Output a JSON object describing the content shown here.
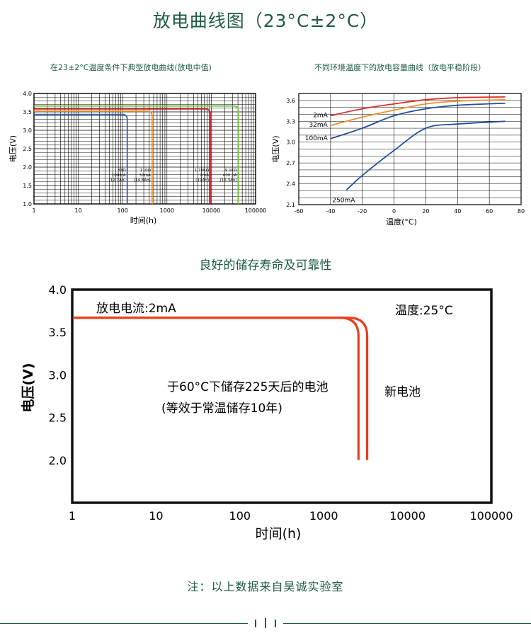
{
  "page": {
    "title": "放电曲线图（23°C±2°C）",
    "note": "注：以上数据来自昊诚实验室",
    "section_title": "良好的储存寿命及可靠性"
  },
  "chart_data": [
    {
      "id": "chart1",
      "type": "line",
      "title": "在23±2°C温度条件下典型放电曲线(放电中值)",
      "xlabel": "时间(h)",
      "ylabel": "电压(V)",
      "xscale": "log",
      "xlim": [
        1,
        100000
      ],
      "ylim": [
        1.0,
        4.0
      ],
      "xticks": [
        "1",
        "10",
        "100",
        "1000",
        "10000",
        "100000"
      ],
      "yticks": [
        "1.0",
        "1.5",
        "2.0",
        "2.5",
        "3.0",
        "3.5",
        "4.0"
      ],
      "grid": true,
      "series": [
        {
          "color": "#2b5fb0",
          "plateau": 3.43,
          "end_x": 127,
          "label_lines": [
            "33Ω",
            "100mA",
            "(12.7Ah)"
          ]
        },
        {
          "color": "#e8902a",
          "plateau": 3.52,
          "end_x": 463,
          "label_lines": [
            "110Ω",
            "32mA",
            "(14.8Ah)"
          ]
        },
        {
          "color": "#c8202a",
          "plateau": 3.58,
          "end_x": 9500,
          "label_lines": [
            "1.78KΩ",
            "2mA",
            "(19Ah)"
          ]
        },
        {
          "color": "#7ac142",
          "plateau": 3.66,
          "end_x": 40750,
          "label_lines": [
            "9.1KΩ",
            "400 μA",
            "(16.3Ah)"
          ]
        }
      ]
    },
    {
      "id": "chart2",
      "type": "line",
      "title": "不同环境温度下的放电容量曲线（放电平稳阶段）",
      "xlabel": "温度(°C)",
      "ylabel": "电压(V)",
      "xlim": [
        -60,
        80
      ],
      "ylim": [
        2.1,
        3.7
      ],
      "xticks": [
        "-60",
        "-40",
        "-20",
        "0",
        "20",
        "40",
        "60",
        "80"
      ],
      "yticks": [
        "2.1",
        "2.4",
        "2.7",
        "3.0",
        "3.3",
        "3.6"
      ],
      "grid": true,
      "series": [
        {
          "name": "2mA",
          "color": "#d9302a",
          "points": [
            [
              -40,
              3.38
            ],
            [
              -20,
              3.48
            ],
            [
              0,
              3.55
            ],
            [
              20,
              3.61
            ],
            [
              40,
              3.64
            ],
            [
              70,
              3.65
            ]
          ]
        },
        {
          "name": "32mA",
          "color": "#e8902a",
          "points": [
            [
              -40,
              3.24
            ],
            [
              -20,
              3.36
            ],
            [
              0,
              3.46
            ],
            [
              20,
              3.55
            ],
            [
              40,
              3.59
            ],
            [
              70,
              3.61
            ]
          ]
        },
        {
          "name": "100mA",
          "color": "#1f4e9c",
          "points": [
            [
              -40,
              3.05
            ],
            [
              -20,
              3.2
            ],
            [
              0,
              3.38
            ],
            [
              20,
              3.48
            ],
            [
              40,
              3.53
            ],
            [
              70,
              3.56
            ]
          ]
        },
        {
          "name": "250mA",
          "color": "#1f4e9c",
          "points": [
            [
              -30,
              2.31
            ],
            [
              -20,
              2.52
            ],
            [
              0,
              2.88
            ],
            [
              20,
              3.2
            ],
            [
              40,
              3.26
            ],
            [
              70,
              3.3
            ]
          ]
        }
      ]
    },
    {
      "id": "chart3",
      "type": "line",
      "xlabel": "时间(h)",
      "ylabel": "电压(V)",
      "xscale": "log",
      "xlim": [
        1,
        100000
      ],
      "ylim": [
        1.5,
        4.0
      ],
      "xticks": [
        "1",
        "10",
        "100",
        "1000",
        "10000",
        "100000"
      ],
      "yticks": [
        "2.0",
        "2.5",
        "3.0",
        "3.5",
        "4.0"
      ],
      "grid": false,
      "annotations": {
        "current": "放电电流:2mA",
        "temperature": "温度:25°C",
        "stored": "于60°C下储存225天后的电池",
        "stored_note": "(等效于常温储存10年)",
        "new": "新电池"
      },
      "series": [
        {
          "name": "于60°C下储存225天后的电池",
          "color": "#e8401e",
          "plateau": 3.67,
          "end_x": 2600
        },
        {
          "name": "新电池",
          "color": "#e8401e",
          "plateau": 3.67,
          "end_x": 3300
        }
      ]
    }
  ]
}
